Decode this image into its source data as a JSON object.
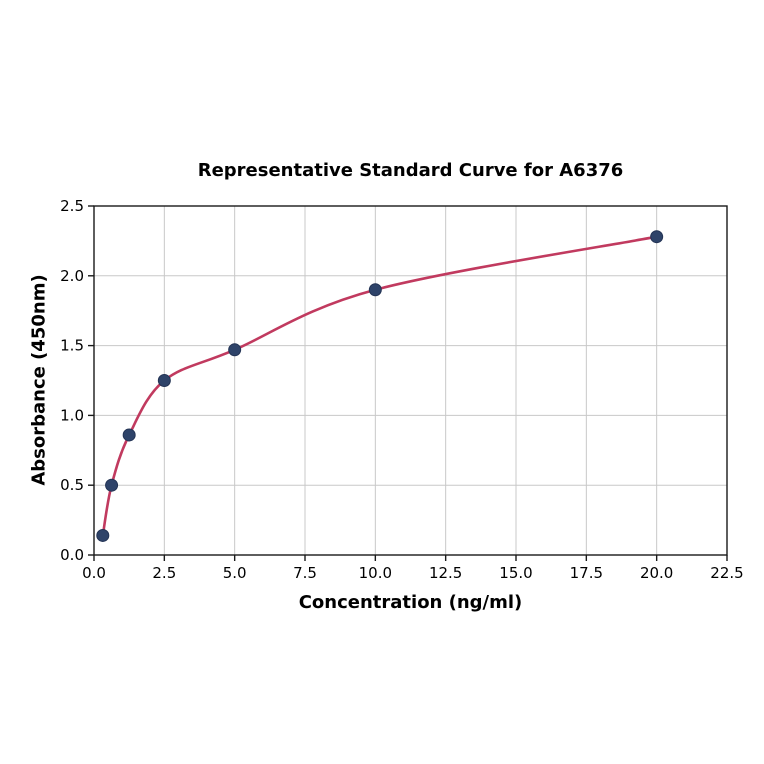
{
  "chart_data": {
    "type": "scatter",
    "title": "Representative Standard Curve for A6376",
    "xlabel": "Concentration (ng/ml)",
    "ylabel": "Absorbance (450nm)",
    "x": [
      0.3125,
      0.625,
      1.25,
      2.5,
      5,
      10,
      20
    ],
    "y": [
      0.14,
      0.5,
      0.86,
      1.25,
      1.47,
      1.9,
      2.28
    ],
    "series_name": "Standard curve fit",
    "xlim": [
      0,
      22.5
    ],
    "ylim": [
      0,
      2.5
    ],
    "xticks": [
      0.0,
      2.5,
      5.0,
      7.5,
      10.0,
      12.5,
      15.0,
      17.5,
      20.0,
      22.5
    ],
    "yticks": [
      0.0,
      0.5,
      1.0,
      1.5,
      2.0,
      2.5
    ],
    "tick_decimals": 1,
    "grid": true,
    "legend": false,
    "colors": {
      "curve": "#c13a5f",
      "marker": "#2e4369",
      "marker_edge": "#233354",
      "grid": "#c8c8c8",
      "spine": "#1a1a1a",
      "text": "#000000",
      "background": "#ffffff"
    }
  }
}
